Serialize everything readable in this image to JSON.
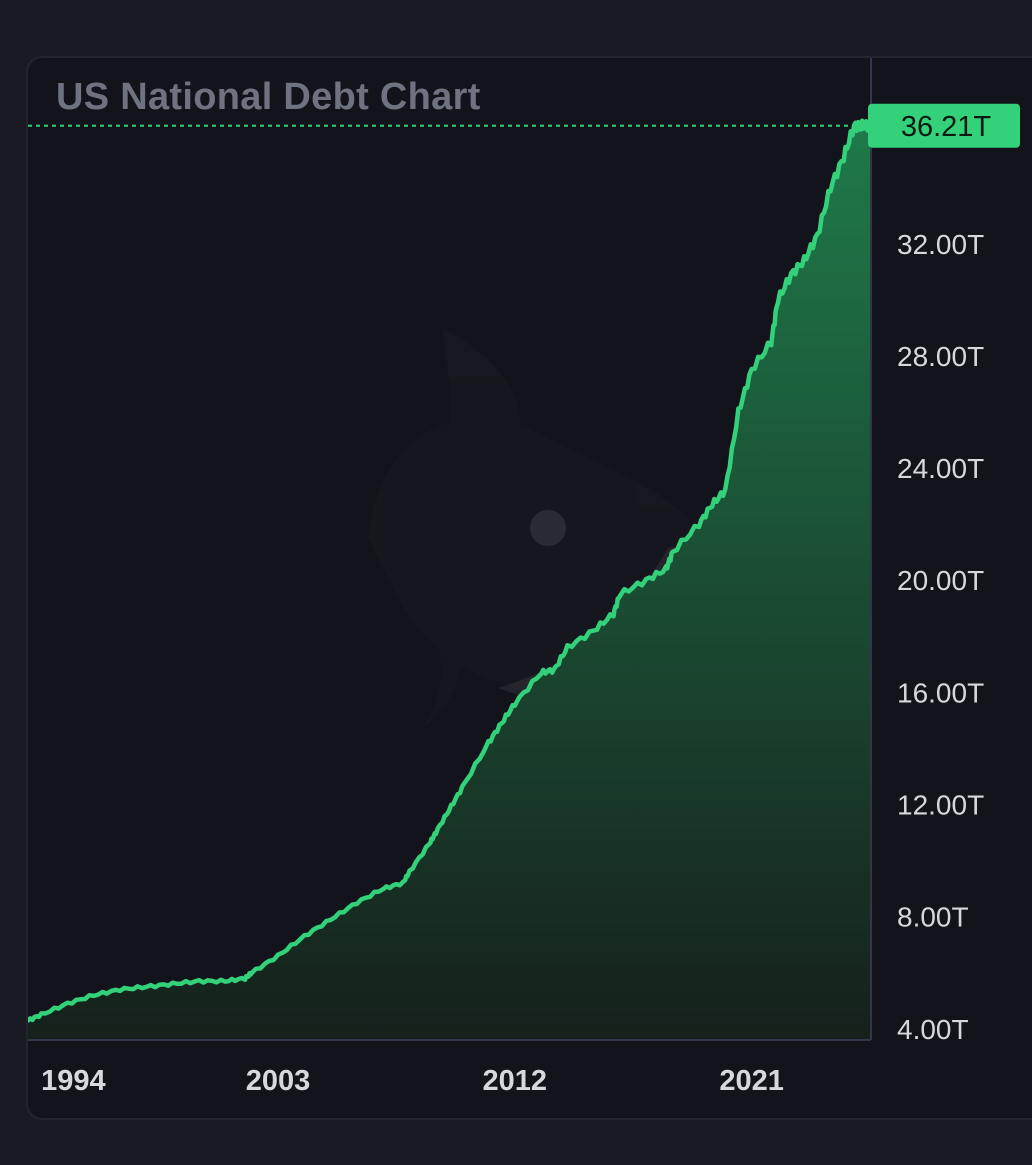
{
  "colors": {
    "page_background": "#191a22",
    "panel_background": "#13141b",
    "line": "#33d17a",
    "area_top": "#1f7a4a",
    "area_bottom": "#16201c",
    "axis_divider": "#33364a",
    "price_tag": "#33d17a",
    "tick_text": "#d6d8de",
    "title_text": "#6e7281"
  },
  "watermark": {
    "icon": "whale-logo-icon"
  },
  "chart_data": {
    "type": "area",
    "title": "US National Debt Chart",
    "xlabel": "",
    "ylabel": "",
    "unit": "T",
    "xlim": [
      1993.5,
      2025.5
    ],
    "ylim": [
      3.6,
      37.2
    ],
    "yticks": [
      {
        "value": 32,
        "label": "32.00T"
      },
      {
        "value": 28,
        "label": "28.00T"
      },
      {
        "value": 24,
        "label": "24.00T"
      },
      {
        "value": 20,
        "label": "20.00T"
      },
      {
        "value": 16,
        "label": "16.00T"
      },
      {
        "value": 12,
        "label": "12.00T"
      },
      {
        "value": 8,
        "label": "8.00T"
      },
      {
        "value": 4,
        "label": "4.00T"
      }
    ],
    "xticks": [
      {
        "value": 1994,
        "label": "1994"
      },
      {
        "value": 2003,
        "label": "2003"
      },
      {
        "value": 2012,
        "label": "2012"
      },
      {
        "value": 2021,
        "label": "2021"
      }
    ],
    "last_value": {
      "value": 36.21,
      "label": "36.21T"
    },
    "grid": false,
    "legend": "none",
    "series": [
      {
        "x": [
          1993.5,
          1994,
          1995,
          1996,
          1997,
          1998,
          1999,
          2000,
          2001,
          2001.75,
          2002,
          2003,
          2004,
          2005,
          2006,
          2007,
          2007.75,
          2008,
          2008.75,
          2009,
          2009.5,
          2010,
          2011,
          2011.5,
          2012,
          2013,
          2013.5,
          2014,
          2015,
          2015.75,
          2016,
          2017,
          2017.75,
          2018,
          2019,
          2019.5,
          2020,
          2020.5,
          2021,
          2021.75,
          2022,
          2022.5,
          2023,
          2023.5,
          2024,
          2024.5,
          2024.9,
          2025.2,
          2025.5
        ],
        "y": [
          4.3,
          4.5,
          4.9,
          5.2,
          5.4,
          5.5,
          5.6,
          5.7,
          5.7,
          5.8,
          6.0,
          6.6,
          7.3,
          7.9,
          8.5,
          9.0,
          9.2,
          9.6,
          10.6,
          11.0,
          11.8,
          12.6,
          14.2,
          14.9,
          15.6,
          16.7,
          16.8,
          17.6,
          18.2,
          18.8,
          19.5,
          20.0,
          20.4,
          21.0,
          22.0,
          22.7,
          23.2,
          26.0,
          27.5,
          28.5,
          30.0,
          30.9,
          31.4,
          32.3,
          34.0,
          35.1,
          36.21,
          36.21,
          36.21
        ]
      }
    ]
  }
}
